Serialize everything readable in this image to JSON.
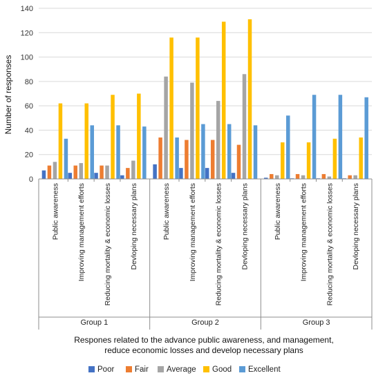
{
  "chart_data": {
    "type": "bar",
    "ylabel": "Number of responses",
    "xlabel_lines": [
      "Respones related to the advance public awareness, and management,",
      "reduce economic losses and develop necessary plans"
    ],
    "ylim": [
      0,
      140
    ],
    "yticks": [
      0,
      20,
      40,
      60,
      80,
      100,
      120,
      140
    ],
    "grid": true,
    "legend_position": "bottom",
    "groups": [
      {
        "name": "Group 1",
        "categories": [
          "Public awareness",
          "Improving management efforts",
          "Reducing mortality & economic losses",
          "Devloping necessary plans"
        ],
        "series": [
          {
            "name": "Poor",
            "values": [
              7,
              5,
              5,
              3
            ]
          },
          {
            "name": "Fair",
            "values": [
              11,
              11,
              11,
              9
            ]
          },
          {
            "name": "Average",
            "values": [
              14,
              13,
              11,
              15
            ]
          },
          {
            "name": "Good",
            "values": [
              62,
              62,
              69,
              70
            ]
          },
          {
            "name": "Excellent",
            "values": [
              33,
              44,
              44,
              43
            ]
          }
        ]
      },
      {
        "name": "Group 2",
        "categories": [
          "Public awareness",
          "Improving management efforts",
          "Reducing mortality & economic losses",
          "Devloping necessary plans"
        ],
        "series": [
          {
            "name": "Poor",
            "values": [
              12,
              9,
              9,
              5
            ]
          },
          {
            "name": "Fair",
            "values": [
              34,
              32,
              32,
              28
            ]
          },
          {
            "name": "Average",
            "values": [
              84,
              79,
              64,
              86
            ]
          },
          {
            "name": "Good",
            "values": [
              116,
              116,
              129,
              131
            ]
          },
          {
            "name": "Excellent",
            "values": [
              34,
              45,
              45,
              44
            ]
          }
        ]
      },
      {
        "name": "Group 3",
        "categories": [
          "Public awareness",
          "Improving management efforts",
          "Reducing mortality & economic losses",
          "Devloping necessary plans"
        ],
        "series": [
          {
            "name": "Poor",
            "values": [
              1,
              0.5,
              0.5,
              0.5
            ]
          },
          {
            "name": "Fair",
            "values": [
              4,
              4,
              4,
              3
            ]
          },
          {
            "name": "Average",
            "values": [
              3,
              3,
              2,
              3
            ]
          },
          {
            "name": "Good",
            "values": [
              30,
              30,
              33,
              34
            ]
          },
          {
            "name": "Excellent",
            "values": [
              52,
              69,
              69,
              67
            ]
          }
        ]
      }
    ],
    "legend": [
      {
        "name": "Poor",
        "color": "#4472C4"
      },
      {
        "name": "Fair",
        "color": "#ED7D31"
      },
      {
        "name": "Average",
        "color": "#A5A5A5"
      },
      {
        "name": "Good",
        "color": "#FFC000"
      },
      {
        "name": "Excellent",
        "color": "#5B9BD5"
      }
    ]
  }
}
